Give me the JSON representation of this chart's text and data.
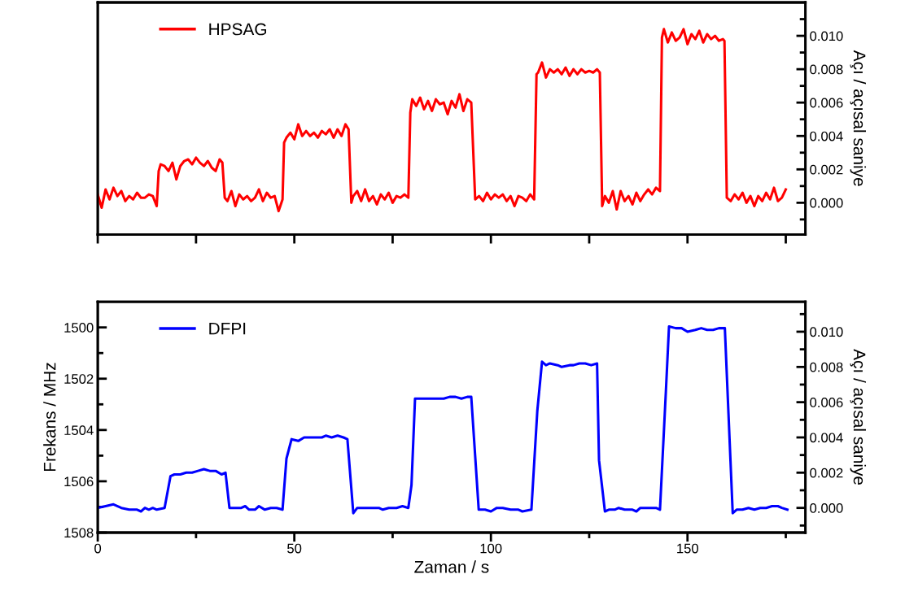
{
  "chart_data": [
    {
      "type": "line",
      "legend": "top left",
      "xlim": [
        0,
        180
      ],
      "tick_labels": "y",
      "xticks": [
        0,
        {
          "value": 25,
          "label": null
        },
        50,
        {
          "value": 75,
          "label": null
        },
        100,
        {
          "value": 125,
          "label": null
        },
        150,
        {
          "value": 175,
          "label": null
        }
      ],
      "y2lim": [
        -0.0019,
        0.012
      ],
      "y2ticks": [
        {
          "value": -0.001,
          "label": null
        },
        {
          "value": 0.0,
          "label": "0.000"
        },
        {
          "value": 0.001,
          "label": null
        },
        {
          "value": 0.002,
          "label": "0.002"
        },
        {
          "value": 0.003,
          "label": null
        },
        {
          "value": 0.004,
          "label": "0.004"
        },
        {
          "value": 0.005,
          "label": null
        },
        {
          "value": 0.006,
          "label": "0.006"
        },
        {
          "value": 0.007,
          "label": null
        },
        {
          "value": 0.008,
          "label": "0.008"
        },
        {
          "value": 0.009,
          "label": null
        },
        {
          "value": 0.01,
          "label": "0.010"
        },
        {
          "value": 0.011,
          "label": null
        }
      ],
      "y2label": "Açı / açısal saniye",
      "series": [
        {
          "name": "HPSAG",
          "color": "#ff0000",
          "axis": "y2",
          "x": [
            0,
            1,
            2,
            3,
            4,
            5,
            6,
            7,
            8,
            9,
            10,
            11,
            12,
            13,
            14,
            15,
            15.5,
            16,
            17,
            18,
            19,
            20,
            21,
            22,
            23,
            24,
            25,
            26,
            27,
            28,
            29,
            30,
            31,
            31.7,
            32.3,
            33,
            34,
            35,
            36,
            37,
            38,
            39,
            40,
            41,
            42,
            43,
            44,
            45,
            46,
            47,
            47.4,
            48,
            49,
            50,
            51,
            52,
            53,
            54,
            55,
            56,
            57,
            58,
            59,
            60,
            61,
            62,
            63,
            63.8,
            64.5,
            65,
            66,
            67,
            68,
            69,
            70,
            71,
            72,
            73,
            74,
            75,
            76,
            77,
            78,
            79,
            79.5,
            80,
            81,
            82,
            83,
            84,
            85,
            86,
            87,
            88,
            89,
            90,
            91,
            92,
            93,
            94,
            95,
            96,
            97,
            98,
            99,
            100,
            101,
            102,
            103,
            104,
            105,
            106,
            107,
            108,
            109,
            110,
            111,
            111.6,
            112,
            113,
            114,
            115,
            116,
            117,
            118,
            119,
            120,
            121,
            122,
            123,
            124,
            125,
            126,
            127,
            127.7,
            128.3,
            129,
            130,
            131,
            132,
            133,
            134,
            135,
            136,
            137,
            138,
            139,
            140,
            141,
            142,
            143,
            143.5,
            144,
            145,
            146,
            147,
            148,
            149,
            150,
            151,
            152,
            153,
            154,
            155,
            156,
            157,
            158,
            159,
            159.4,
            160,
            161,
            162,
            163,
            164,
            165,
            166,
            167,
            168,
            169,
            170,
            171,
            172,
            173,
            174,
            175
          ],
          "values": [
            0.0005,
            -0.0003,
            0.0008,
            0.0002,
            0.0009,
            0.0004,
            0.0007,
            0.0001,
            0.0004,
            0.0002,
            0.0006,
            0.0003,
            0.0003,
            0.0005,
            0.0004,
            -0.0002,
            0.0019,
            0.0023,
            0.0022,
            0.0019,
            0.0024,
            0.0014,
            0.0022,
            0.0025,
            0.0026,
            0.0023,
            0.0027,
            0.0024,
            0.0022,
            0.0025,
            0.0021,
            0.0019,
            0.0026,
            0.0024,
            0.0003,
            0.0001,
            0.0007,
            -0.0002,
            0.0005,
            0.0002,
            0.0004,
            0.0001,
            0.0003,
            0.0008,
            0.0001,
            0.0006,
            0.0003,
            0.0004,
            -0.0005,
            0.0002,
            0.0036,
            0.0039,
            0.0042,
            0.0038,
            0.0047,
            0.004,
            0.0043,
            0.004,
            0.0042,
            0.0039,
            0.0043,
            0.0041,
            0.0044,
            0.0039,
            0.0044,
            0.004,
            0.0047,
            0.0044,
            0.0,
            0.0004,
            0.0007,
            0.0001,
            0.0008,
            0.0001,
            0.0004,
            -0.0001,
            0.0005,
            0.0002,
            0.0006,
            0.0,
            0.0004,
            0.0003,
            0.0005,
            0.0003,
            0.0054,
            0.0062,
            0.0058,
            0.0063,
            0.0056,
            0.0061,
            0.0055,
            0.0062,
            0.0059,
            0.006,
            0.0053,
            0.0061,
            0.0057,
            0.0065,
            0.0055,
            0.0062,
            0.006,
            0.0002,
            0.0004,
            0.0001,
            0.0006,
            0.0002,
            0.0005,
            0.0003,
            0.0005,
            0.0001,
            0.0004,
            -0.0002,
            0.0004,
            0.0003,
            0.0001,
            0.0005,
            0.0002,
            0.0077,
            0.0078,
            0.0084,
            0.0075,
            0.008,
            0.0078,
            0.008,
            0.0077,
            0.0081,
            0.0076,
            0.008,
            0.0077,
            0.008,
            0.0078,
            0.0079,
            0.0078,
            0.008,
            0.0078,
            -0.0002,
            0.0004,
            0.0,
            0.0007,
            -0.0004,
            0.0007,
            0.0001,
            0.0004,
            -0.0001,
            0.0006,
            0.0001,
            0.0005,
            0.0008,
            0.0005,
            0.0009,
            0.0007,
            0.0099,
            0.0104,
            0.0096,
            0.0102,
            0.0097,
            0.0099,
            0.0104,
            0.0095,
            0.0101,
            0.0098,
            0.0103,
            0.0096,
            0.0101,
            0.0098,
            0.01,
            0.0097,
            0.0098,
            0.0097,
            0.0003,
            0.0001,
            0.0005,
            0.0002,
            0.0006,
            0.0,
            0.0004,
            -0.0002,
            0.0004,
            0.0001,
            0.0006,
            0.0002,
            0.0009,
            0.0001,
            0.0003,
            0.0008
          ]
        }
      ]
    },
    {
      "type": "line",
      "legend": "top left",
      "xlim": [
        0,
        180
      ],
      "xticks": [
        0,
        {
          "value": 25,
          "label": null
        },
        50,
        {
          "value": 75,
          "label": null
        },
        100,
        {
          "value": 125,
          "label": null
        },
        150,
        {
          "value": 175,
          "label": null
        }
      ],
      "xlabel": "Zaman / s",
      "ylabel": "Frekans / MHz",
      "ylim": [
        1508,
        1499
      ],
      "yticks": [
        1500,
        {
          "value": 1501,
          "label": null
        },
        1502,
        {
          "value": 1503,
          "label": null
        },
        1504,
        {
          "value": 1505,
          "label": null
        },
        1506,
        {
          "value": 1507,
          "label": null
        },
        1508
      ],
      "y2lim": [
        -0.0014,
        0.0117
      ],
      "y2ticks": [
        {
          "value": -0.001,
          "label": null
        },
        {
          "value": 0.0,
          "label": "0.000"
        },
        {
          "value": 0.001,
          "label": null
        },
        {
          "value": 0.002,
          "label": "0.002"
        },
        {
          "value": 0.003,
          "label": null
        },
        {
          "value": 0.004,
          "label": "0.004"
        },
        {
          "value": 0.005,
          "label": null
        },
        {
          "value": 0.006,
          "label": "0.006"
        },
        {
          "value": 0.007,
          "label": null
        },
        {
          "value": 0.008,
          "label": "0.008"
        },
        {
          "value": 0.009,
          "label": null
        },
        {
          "value": 0.01,
          "label": "0.010"
        },
        {
          "value": 0.011,
          "label": null
        }
      ],
      "y2label": "Açı / açısal saniye",
      "series": [
        {
          "name": "DFPI",
          "color": "#0000ff",
          "axis": "y2",
          "x": [
            0,
            2,
            4,
            6,
            8,
            10,
            11,
            12,
            13,
            14,
            15,
            17,
            18.5,
            19.5,
            21,
            22.5,
            24,
            25.5,
            27,
            28.5,
            30,
            31.5,
            32.5,
            33.5,
            35,
            36.5,
            37.5,
            38.5,
            40,
            41,
            42.5,
            44,
            45.5,
            47,
            48,
            49.3,
            51,
            52.5,
            54,
            56,
            57,
            58,
            59.5,
            61,
            62.5,
            63.5,
            65,
            66,
            68,
            70,
            71.5,
            72.5,
            74,
            76,
            77.5,
            79,
            79.8,
            80.7,
            82,
            83.5,
            85,
            86.5,
            88,
            89.5,
            91,
            92.5,
            94,
            95,
            96.9,
            98.5,
            100,
            101.5,
            103,
            105,
            107,
            108,
            110.3,
            111.8,
            113,
            114,
            115,
            117,
            118,
            120,
            121,
            122.5,
            124,
            125.5,
            127,
            127.5,
            129,
            130,
            131.5,
            132.5,
            134,
            136,
            137,
            138,
            139,
            140,
            141,
            142,
            143,
            144.5,
            145.3,
            147,
            148.5,
            150,
            152,
            153.5,
            155,
            156.5,
            158,
            159.5,
            161.5,
            162.5,
            164,
            165.5,
            167,
            168.5,
            170,
            171.5,
            173,
            174,
            175.4
          ],
          "values": [
            0.0,
            0.0001,
            0.0002,
            0.0,
            -0.0001,
            -0.0001,
            -0.0002,
            0.0,
            -0.0001,
            0.0,
            -0.0001,
            0.0,
            0.0018,
            0.0019,
            0.0019,
            0.002,
            0.002,
            0.0021,
            0.0022,
            0.0021,
            0.0021,
            0.0019,
            0.002,
            0.0,
            0.0,
            0.0,
            0.0001,
            -0.0001,
            -0.0001,
            0.0001,
            -0.0001,
            0.0,
            0.0,
            -0.0001,
            0.0028,
            0.0039,
            0.0038,
            0.004,
            0.004,
            0.004,
            0.004,
            0.0041,
            0.004,
            0.0041,
            0.004,
            0.0039,
            -0.0003,
            0.0,
            0.0,
            0.0,
            0.0,
            -0.0001,
            0.0,
            0.0,
            0.0001,
            0.0,
            0.0013,
            0.0062,
            0.0062,
            0.0062,
            0.0062,
            0.0062,
            0.0062,
            0.0063,
            0.0063,
            0.0062,
            0.0063,
            0.0063,
            -0.0001,
            -0.0001,
            -0.0002,
            0.0,
            0.0,
            -0.0001,
            -0.0001,
            -0.0002,
            -0.0001,
            0.0055,
            0.0083,
            0.0081,
            0.0082,
            0.0081,
            0.008,
            0.0081,
            0.0081,
            0.0082,
            0.0082,
            0.0081,
            0.0082,
            0.0027,
            -0.0002,
            -0.0001,
            -0.0001,
            0.0,
            -0.0001,
            -0.0001,
            -0.0002,
            0.0,
            0.0,
            0.0,
            0.0,
            0.0,
            -0.0001,
            0.0066,
            0.0103,
            0.0102,
            0.0102,
            0.01,
            0.0101,
            0.0102,
            0.0101,
            0.0101,
            0.0102,
            0.0102,
            -0.0003,
            -0.0001,
            -0.0001,
            0.0,
            -0.0001,
            0.0,
            0.0,
            0.0001,
            0.0001,
            0.0,
            -0.0001
          ]
        }
      ]
    }
  ]
}
